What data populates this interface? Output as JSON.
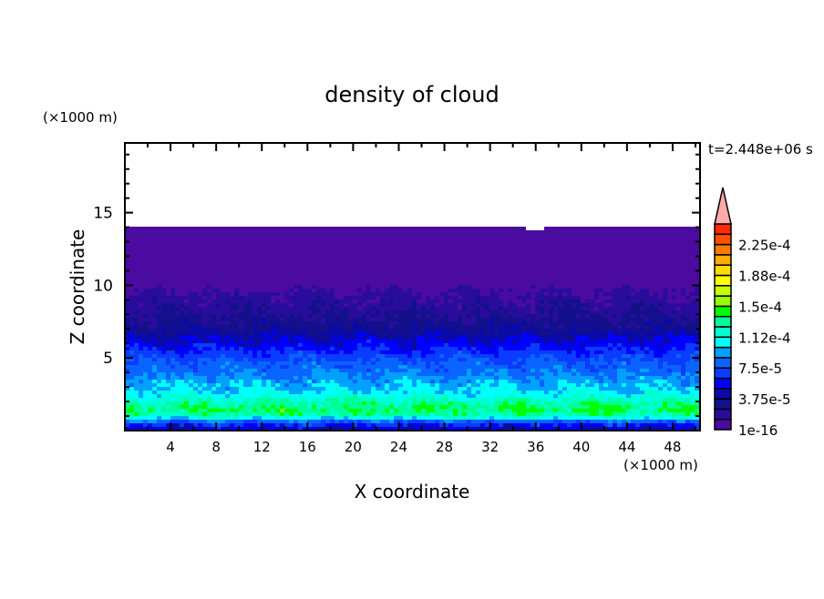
{
  "chart_data": {
    "type": "heatmap",
    "title": "density of cloud",
    "xlabel": "X coordinate",
    "ylabel": "Z coordinate",
    "x_unit": "(×1000 m)",
    "y_unit": "(×1000 m)",
    "time_label": "t=2.448e+06 s",
    "xlim": [
      0,
      50.4
    ],
    "ylim": [
      0,
      19.8
    ],
    "x_ticks": [
      4,
      8,
      12,
      16,
      20,
      24,
      28,
      32,
      36,
      40,
      44,
      48
    ],
    "y_ticks": [
      5,
      10,
      15
    ],
    "cloud_top_km": 14.1,
    "vertical_profile": {
      "z": [
        0,
        0.3,
        0.6,
        1.0,
        1.5,
        2.0,
        2.5,
        3.0,
        3.5,
        4.0,
        4.5,
        5.0,
        5.5,
        6.0,
        6.5,
        7.0,
        8.0,
        9.0,
        9.6,
        10.0,
        14.1
      ],
      "level_index": [
        3.5,
        4.5,
        6,
        10,
        11,
        10,
        8.5,
        8,
        7.3,
        6.8,
        6.3,
        5.8,
        5,
        4.3,
        3.6,
        2.8,
        2,
        1.4,
        1,
        0.3,
        0.3
      ]
    },
    "colorbar": {
      "labels": [
        "1e-16",
        "3.75e-5",
        "7.5e-5",
        "1.12e-4",
        "1.5e-4",
        "1.88e-4",
        "2.25e-4"
      ],
      "level_step": 1.25e-05,
      "colors": [
        "#4b0aa0",
        "#2a0c9c",
        "#14108c",
        "#0a0aa8",
        "#0000ff",
        "#0a3cff",
        "#0a64ff",
        "#00a0ff",
        "#00ffff",
        "#00ffd2",
        "#00ff96",
        "#00ff00",
        "#96ff00",
        "#c8ff00",
        "#ffff00",
        "#ffdc00",
        "#ffaa00",
        "#ff7800",
        "#ff5000",
        "#ff2800"
      ],
      "extend_color": "#ffaaaa"
    }
  }
}
